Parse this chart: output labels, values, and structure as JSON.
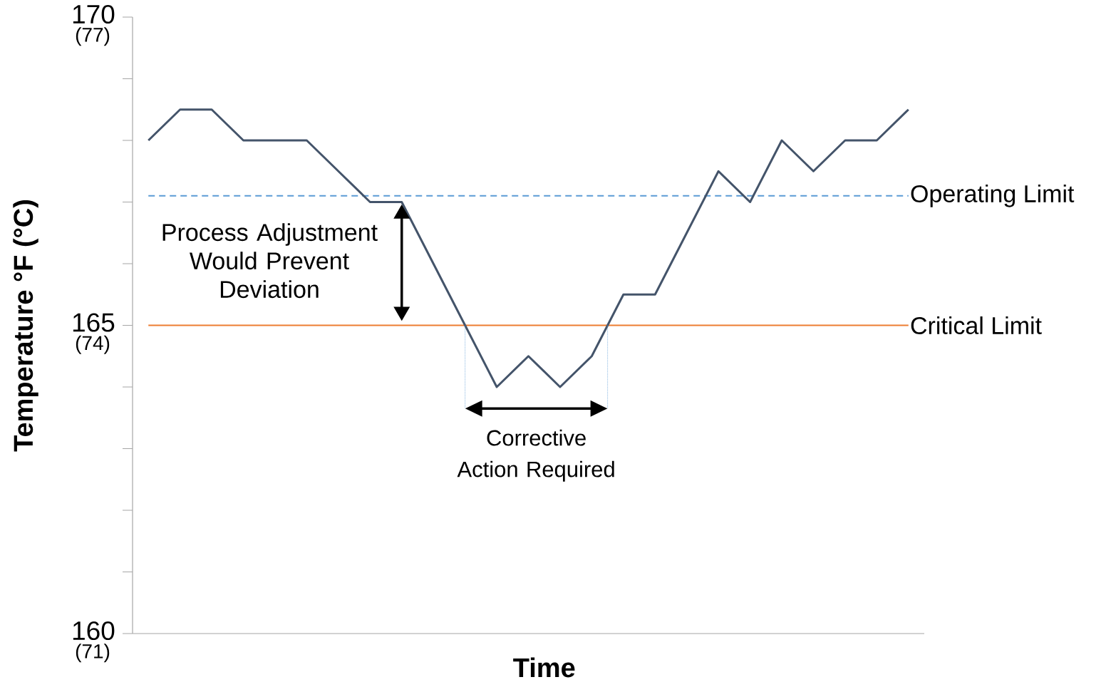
{
  "chart_data": {
    "type": "line",
    "xlabel": "Time",
    "ylabel": "Temperature °F (°C)",
    "categories": [
      null,
      null,
      null,
      null,
      null,
      null,
      null,
      null,
      null,
      null,
      null,
      null,
      null,
      null,
      null,
      null,
      null,
      null,
      null,
      null,
      null,
      null,
      null,
      null,
      null
    ],
    "values": [
      168,
      168.5,
      168.5,
      168,
      168,
      168,
      167.5,
      167,
      167,
      166,
      165,
      164,
      164.5,
      164,
      164.5,
      165.5,
      165.5,
      166.5,
      167.5,
      167,
      168,
      167.5,
      168,
      168,
      168.5
    ],
    "color": "#44546a",
    "ylim": [
      160,
      170
    ],
    "yticks": [
      160,
      165,
      170
    ],
    "ref_lines": [
      {
        "axis": "y",
        "value": 167.1,
        "label": "Operating Limit",
        "color": "#5b9bd5",
        "line_style": "dashed"
      },
      {
        "axis": "y",
        "value": 165,
        "label": "Critical Limit",
        "color": "#ed7d31",
        "line_style": "solid"
      }
    ],
    "annotations": [
      "Process Adjustment Would Prevent Deviation",
      "Corrective Action Required",
      "(77)",
      "(74)",
      "(71)"
    ]
  }
}
